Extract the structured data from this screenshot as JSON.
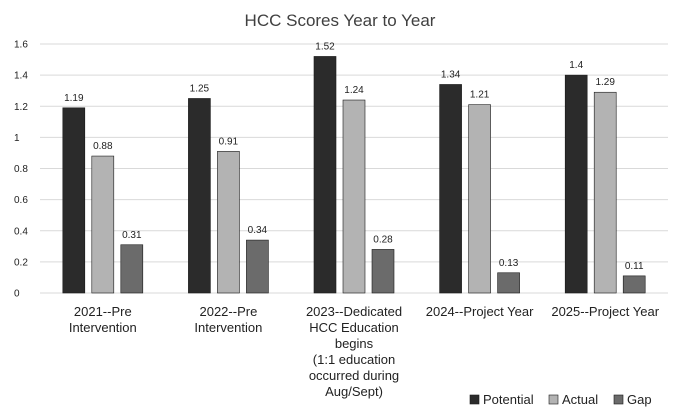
{
  "chart_data": {
    "type": "bar",
    "title": "HCC Scores Year to Year",
    "categories": [
      [
        "2021--Pre",
        "Intervention"
      ],
      [
        "2022--Pre",
        "Intervention"
      ],
      [
        "2023--Dedicated",
        "HCC Education",
        "begins",
        "(1:1 education",
        "occurred during",
        "Aug/Sept)"
      ],
      [
        "2024--Project Year"
      ],
      [
        "2025--Project Year"
      ]
    ],
    "series": [
      {
        "name": "Potential",
        "values": [
          1.19,
          1.25,
          1.52,
          1.34,
          1.4
        ],
        "labels": [
          "1.19",
          "1.25",
          "1.52",
          "1.34",
          "1.4"
        ],
        "color": "#2b2b2b"
      },
      {
        "name": "Actual",
        "values": [
          0.88,
          0.91,
          1.24,
          1.21,
          1.29
        ],
        "labels": [
          "0.88",
          "0.91",
          "1.24",
          "1.21",
          "1.29"
        ],
        "color": "#b3b3b3"
      },
      {
        "name": "Gap",
        "values": [
          0.31,
          0.34,
          0.28,
          0.13,
          0.11
        ],
        "labels": [
          "0.31",
          "0.34",
          "0.28",
          "0.13",
          "0.11"
        ],
        "color": "#6b6b6b"
      }
    ],
    "ylim": [
      0,
      1.6
    ],
    "yticks": [
      "0",
      "0.2",
      "0.4",
      "0.6",
      "0.8",
      "1",
      "1.2",
      "1.4",
      "1.6"
    ],
    "grid": true,
    "legend": "bottom-right"
  }
}
